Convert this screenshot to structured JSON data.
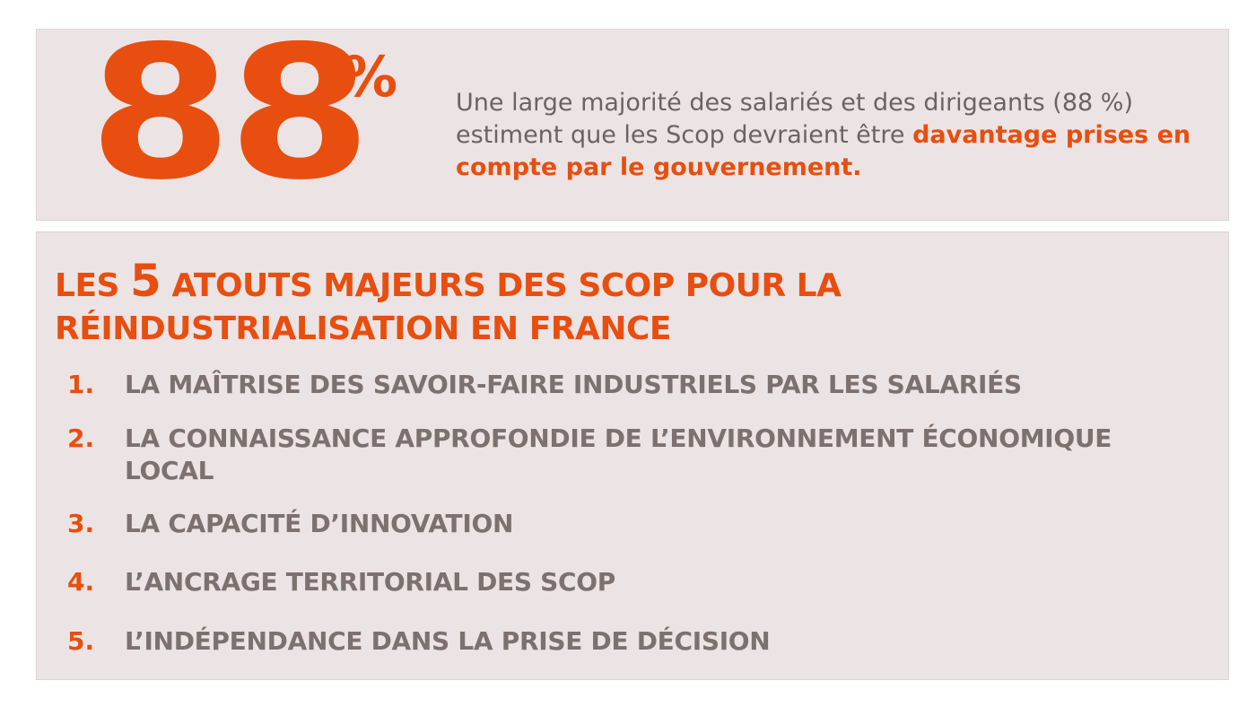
{
  "stat": {
    "number": "88",
    "unit": "%",
    "text_before": "Une large majorité des salariés et des dirigeants (88 %) estiment que les Scop devraient être ",
    "text_highlight": "davantage prises en compte par le gouvernement."
  },
  "list": {
    "title_before": "LES ",
    "title_number": "5",
    "title_after": " ATOUTS MAJEURS DES SCOP POUR LA RÉINDUSTRIALISATION EN FRANCE",
    "items": [
      {
        "number": "1.",
        "text": "LA MAÎTRISE DES SAVOIR-FAIRE INDUSTRIELS PAR LES SALARIÉS"
      },
      {
        "number": "2.",
        "text": "LA CONNAISSANCE APPROFONDIE DE L’ENVIRONNEMENT ÉCONOMIQUE LOCAL"
      },
      {
        "number": "3.",
        "text": "LA CAPACITÉ D’INNOVATION"
      },
      {
        "number": "4.",
        "text": "L’ANCRAGE TERRITORIAL DES SCOP"
      },
      {
        "number": "5.",
        "text": "L’INDÉPENDANCE DANS LA PRISE DE DÉCISION"
      }
    ]
  },
  "colors": {
    "accent": "#e84e0f",
    "panel_background": "#ece4e4",
    "body_text": "#6d6262",
    "list_text": "#7d716f"
  }
}
